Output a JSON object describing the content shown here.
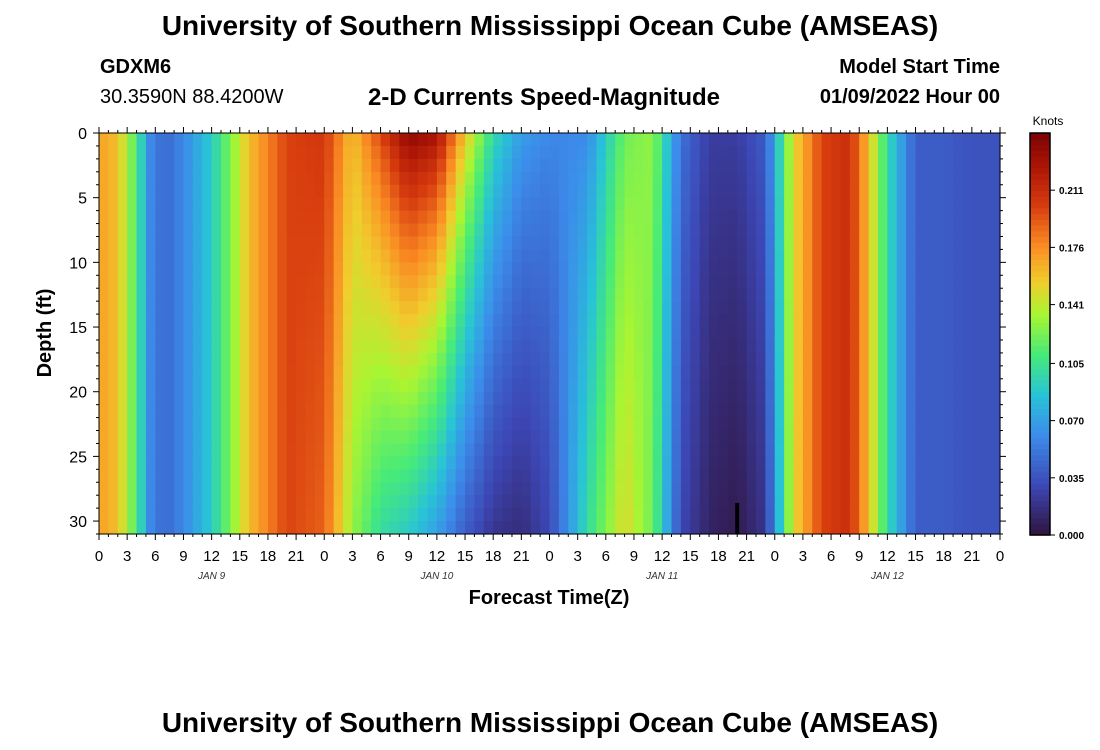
{
  "header": {
    "title": "University of Southern Mississippi Ocean Cube (AMSEAS)",
    "station_id": "GDXM6",
    "coords": "30.3590N  88.4200W",
    "chart_name": "2-D Currents Speed-Magnitude",
    "start_label": "Model Start Time",
    "start_value": "01/09/2022 Hour 00"
  },
  "footer": {
    "title": "University of Southern Mississippi Ocean Cube (AMSEAS)"
  },
  "chart_data": {
    "type": "heatmap",
    "title": "2-D Currents Speed-Magnitude",
    "xlabel": "Forecast Time(Z)",
    "ylabel": "Depth (ft)",
    "x_unit": "hours since model start",
    "x_range": [
      0,
      96
    ],
    "y_range": [
      0,
      31
    ],
    "y_inverted": true,
    "xticks": [
      0,
      3,
      6,
      9,
      12,
      15,
      18,
      21,
      24,
      27,
      30,
      33,
      36,
      39,
      42,
      45,
      48,
      51,
      54,
      57,
      60,
      63,
      66,
      69,
      72,
      75,
      78,
      81,
      84,
      87,
      90,
      93,
      96
    ],
    "xtick_labels": [
      "0",
      "3",
      "6",
      "9",
      "12",
      "15",
      "18",
      "21",
      "0",
      "3",
      "6",
      "9",
      "12",
      "15",
      "18",
      "21",
      "0",
      "3",
      "6",
      "9",
      "12",
      "15",
      "18",
      "21",
      "0",
      "3",
      "6",
      "9",
      "12",
      "15",
      "18",
      "21",
      "0"
    ],
    "date_labels": [
      {
        "hour": 12,
        "label": "JAN 9"
      },
      {
        "hour": 36,
        "label": "JAN 10"
      },
      {
        "hour": 60,
        "label": "JAN 11"
      },
      {
        "hour": 84,
        "label": "JAN 12"
      }
    ],
    "yticks": [
      0,
      5,
      10,
      15,
      20,
      25,
      30
    ],
    "ytick_labels": [
      "0",
      "5",
      "10",
      "15",
      "20",
      "25",
      "30"
    ],
    "colorbar": {
      "unit": "Knots",
      "min": 0.0,
      "max": 0.246,
      "ticks": [
        0.0,
        0.035,
        0.07,
        0.105,
        0.141,
        0.176,
        0.211
      ],
      "tick_labels": [
        "0.000",
        "0.035",
        "0.070",
        "0.105",
        "0.141",
        "0.176",
        "0.211"
      ]
    },
    "current_time_marker_hour": 68,
    "speed_profile_near_surface": [
      [
        0,
        0.17
      ],
      [
        2,
        0.16
      ],
      [
        4,
        0.11
      ],
      [
        5.5,
        0.06
      ],
      [
        7,
        0.045
      ],
      [
        9,
        0.06
      ],
      [
        12,
        0.09
      ],
      [
        16,
        0.16
      ],
      [
        20,
        0.2
      ],
      [
        24,
        0.205
      ],
      [
        27,
        0.16
      ],
      [
        30,
        0.2
      ],
      [
        33,
        0.24
      ],
      [
        36,
        0.23
      ],
      [
        39,
        0.16
      ],
      [
        42,
        0.1
      ],
      [
        45,
        0.07
      ],
      [
        48,
        0.06
      ],
      [
        52,
        0.06
      ],
      [
        56,
        0.12
      ],
      [
        59,
        0.13
      ],
      [
        62,
        0.05
      ],
      [
        65,
        0.025
      ],
      [
        68,
        0.025
      ],
      [
        71,
        0.04
      ],
      [
        74,
        0.15
      ],
      [
        77,
        0.2
      ],
      [
        80,
        0.21
      ],
      [
        82,
        0.16
      ],
      [
        84,
        0.1
      ],
      [
        87,
        0.04
      ],
      [
        90,
        0.04
      ],
      [
        93,
        0.035
      ],
      [
        96,
        0.035
      ]
    ],
    "speed_profile_at_bottom": [
      [
        0,
        0.17
      ],
      [
        2,
        0.16
      ],
      [
        4,
        0.11
      ],
      [
        5.5,
        0.06
      ],
      [
        7,
        0.045
      ],
      [
        9,
        0.06
      ],
      [
        12,
        0.09
      ],
      [
        16,
        0.16
      ],
      [
        20,
        0.2
      ],
      [
        24,
        0.19
      ],
      [
        27,
        0.13
      ],
      [
        30,
        0.1
      ],
      [
        33,
        0.09
      ],
      [
        36,
        0.07
      ],
      [
        39,
        0.04
      ],
      [
        42,
        0.02
      ],
      [
        45,
        0.015
      ],
      [
        48,
        0.03
      ],
      [
        52,
        0.1
      ],
      [
        56,
        0.15
      ],
      [
        59,
        0.12
      ],
      [
        62,
        0.03
      ],
      [
        65,
        0.01
      ],
      [
        68,
        0.005
      ],
      [
        71,
        0.02
      ],
      [
        74,
        0.15
      ],
      [
        77,
        0.2
      ],
      [
        80,
        0.21
      ],
      [
        82,
        0.16
      ],
      [
        84,
        0.1
      ],
      [
        87,
        0.04
      ],
      [
        90,
        0.04
      ],
      [
        93,
        0.035
      ],
      [
        96,
        0.035
      ]
    ]
  }
}
